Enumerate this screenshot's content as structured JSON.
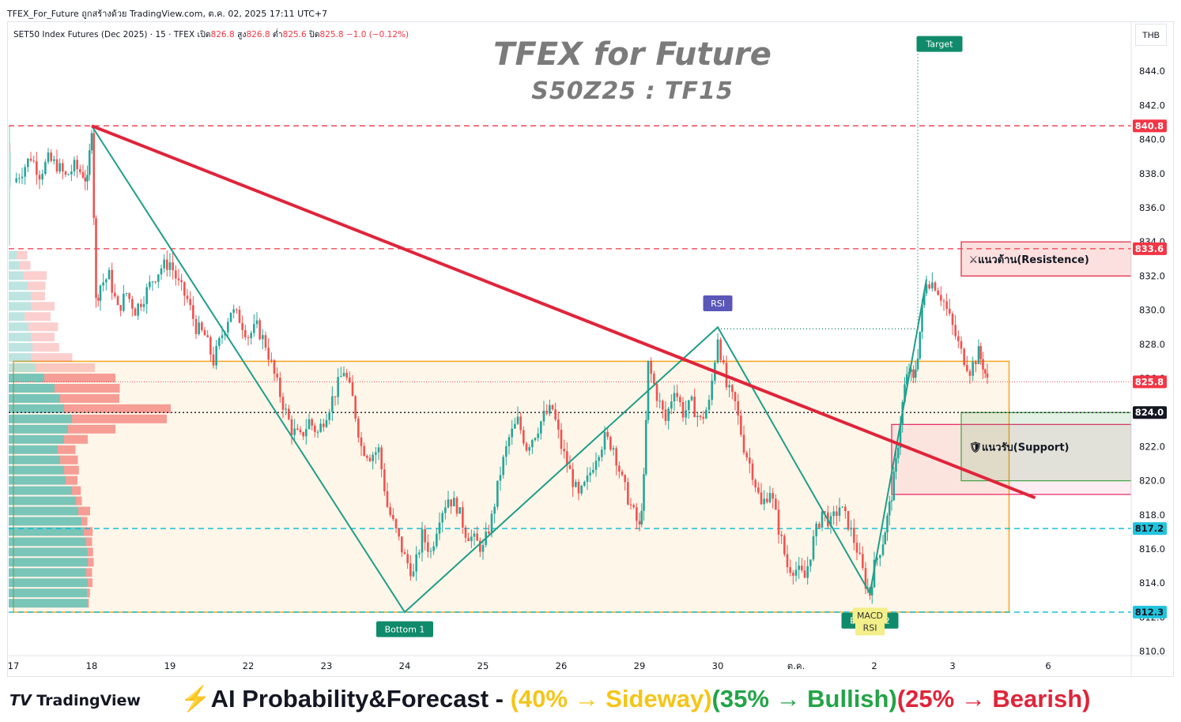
{
  "header": {
    "caption": "TFEX_For_Future ถูกสร้างด้วย TradingView.com, ต.ค. 02, 2025 17:11 UTC+7"
  },
  "legend": {
    "symbol": "SET50 Index Futures (Dec 2025) · 15 · TFEX",
    "open_label": "เปิด",
    "open": "826.8",
    "high_label": "สูง",
    "high": "826.8",
    "low_label": "ต่ำ",
    "low": "825.6",
    "close_label": "ปิด",
    "close": "825.8",
    "change": "−1.0 (−0.12%)"
  },
  "currency": "THB",
  "watermark": {
    "title": "TFEX for Future",
    "subtitle": "S50Z25 : TF15"
  },
  "footer": {
    "logo": "TradingView",
    "forecast_prefix": "⚡AI Probability&Forecast - ",
    "sideway": "(40% → Sideway)",
    "bullish": "(35% → Bullish)",
    "bearish": "(25% → Bearish)"
  },
  "colors": {
    "up": "#26a69a",
    "down": "#ef5350",
    "trend": "#e0243a",
    "zigzag": "#1f9e89",
    "range": "#f5a623",
    "support_box": "#43a047",
    "resistance_box": "#e0243a"
  },
  "chart_data": {
    "type": "candlestick",
    "y_axis": {
      "ticks": [
        "810.0",
        "812.0",
        "814.0",
        "816.0",
        "818.0",
        "820.0",
        "822.0",
        "824.0",
        "826.0",
        "828.0",
        "830.0",
        "832.0",
        "834.0",
        "836.0",
        "838.0",
        "840.0",
        "842.0",
        "844.0"
      ]
    },
    "x_axis": {
      "ticks": [
        {
          "label": "17",
          "x": 0
        },
        {
          "label": "18",
          "x": 18
        },
        {
          "label": "19",
          "x": 36
        },
        {
          "label": "22",
          "x": 54
        },
        {
          "label": "23",
          "x": 72
        },
        {
          "label": "24",
          "x": 90
        },
        {
          "label": "25",
          "x": 108
        },
        {
          "label": "26",
          "x": 126
        },
        {
          "label": "29",
          "x": 144
        },
        {
          "label": "30",
          "x": 162
        },
        {
          "label": "ต.ค.",
          "x": 180
        },
        {
          "label": "2",
          "x": 198
        },
        {
          "label": "3",
          "x": 216
        },
        {
          "label": "6",
          "x": 238
        }
      ]
    },
    "close_path": [
      [
        0,
        837.5
      ],
      [
        2,
        838.2
      ],
      [
        4,
        839.0
      ],
      [
        6,
        838.0
      ],
      [
        8,
        838.8
      ],
      [
        10,
        838.5
      ],
      [
        12,
        837.8
      ],
      [
        14,
        838.4
      ],
      [
        16,
        838.0
      ],
      [
        17,
        837.5
      ],
      [
        18,
        840.8
      ],
      [
        19,
        830.5
      ],
      [
        20,
        831.5
      ],
      [
        22,
        832.0
      ],
      [
        24,
        830.0
      ],
      [
        26,
        831.0
      ],
      [
        28,
        830.0
      ],
      [
        30,
        830.8
      ],
      [
        32,
        831.8
      ],
      [
        34,
        832.5
      ],
      [
        36,
        832.8
      ],
      [
        38,
        831.5
      ],
      [
        40,
        830.6
      ],
      [
        42,
        829.0
      ],
      [
        44,
        828.5
      ],
      [
        46,
        827.0
      ],
      [
        48,
        828.6
      ],
      [
        50,
        830.0
      ],
      [
        52,
        829.5
      ],
      [
        54,
        828.5
      ],
      [
        56,
        829.0
      ],
      [
        58,
        828.0
      ],
      [
        60,
        826.2
      ],
      [
        62,
        824.5
      ],
      [
        64,
        823.0
      ],
      [
        66,
        822.5
      ],
      [
        68,
        823.5
      ],
      [
        70,
        822.8
      ],
      [
        72,
        824.0
      ],
      [
        74,
        825.2
      ],
      [
        76,
        826.5
      ],
      [
        78,
        824.8
      ],
      [
        80,
        822.0
      ],
      [
        82,
        821.5
      ],
      [
        84,
        821.8
      ],
      [
        86,
        818.5
      ],
      [
        88,
        817.0
      ],
      [
        90,
        815.5
      ],
      [
        92,
        814.5
      ],
      [
        94,
        816.8
      ],
      [
        96,
        815.8
      ],
      [
        98,
        818.0
      ],
      [
        100,
        819.0
      ],
      [
        102,
        818.5
      ],
      [
        104,
        817.0
      ],
      [
        106,
        816.5
      ],
      [
        108,
        816.0
      ],
      [
        110,
        817.8
      ],
      [
        112,
        820.5
      ],
      [
        114,
        822.5
      ],
      [
        116,
        823.5
      ],
      [
        118,
        822.0
      ],
      [
        120,
        822.8
      ],
      [
        122,
        823.8
      ],
      [
        124,
        824.2
      ],
      [
        126,
        822.0
      ],
      [
        128,
        820.5
      ],
      [
        130,
        819.0
      ],
      [
        132,
        820.0
      ],
      [
        134,
        821.5
      ],
      [
        136,
        822.5
      ],
      [
        138,
        822.0
      ],
      [
        140,
        820.0
      ],
      [
        142,
        818.5
      ],
      [
        144,
        817.2
      ],
      [
        145,
        820.0
      ],
      [
        146,
        826.8
      ],
      [
        148,
        825.0
      ],
      [
        150,
        823.5
      ],
      [
        152,
        825.5
      ],
      [
        154,
        824.0
      ],
      [
        156,
        824.5
      ],
      [
        158,
        823.5
      ],
      [
        160,
        824.5
      ],
      [
        162,
        828.5
      ],
      [
        164,
        825.5
      ],
      [
        166,
        824.5
      ],
      [
        168,
        822.0
      ],
      [
        170,
        820.5
      ],
      [
        172,
        818.5
      ],
      [
        174,
        819.5
      ],
      [
        176,
        817.2
      ],
      [
        178,
        815.0
      ],
      [
        180,
        814.8
      ],
      [
        182,
        814.3
      ],
      [
        184,
        816.5
      ],
      [
        186,
        818.2
      ],
      [
        188,
        817.5
      ],
      [
        190,
        818.5
      ],
      [
        192,
        817.5
      ],
      [
        194,
        816.0
      ],
      [
        196,
        814.0
      ],
      [
        197,
        813.4
      ],
      [
        198,
        815.0
      ],
      [
        200,
        816.5
      ],
      [
        201,
        817.8
      ],
      [
        202,
        819.2
      ],
      [
        203,
        821.0
      ],
      [
        204,
        823.5
      ],
      [
        205,
        825.5
      ],
      [
        206,
        826.5
      ],
      [
        207,
        825.8
      ],
      [
        208,
        827.5
      ],
      [
        209,
        830.0
      ],
      [
        210,
        831.8
      ],
      [
        212,
        831.5
      ],
      [
        214,
        830.5
      ],
      [
        216,
        829.0
      ],
      [
        218,
        827.5
      ],
      [
        220,
        826.5
      ],
      [
        222,
        827.5
      ],
      [
        223,
        826.8
      ],
      [
        224,
        825.8
      ]
    ],
    "levels": [
      {
        "label": "840.8",
        "price": 840.8,
        "color": "#f23645"
      },
      {
        "label": "833.6",
        "price": 833.6,
        "color": "#f23645"
      },
      {
        "label": "825.8",
        "price": 825.8,
        "color": "#f23645"
      },
      {
        "label": "824.0",
        "price": 824.0,
        "color": "#131722"
      },
      {
        "label": "817.2",
        "price": 817.2,
        "color": "#00bcd4"
      },
      {
        "label": "812.3",
        "price": 812.3,
        "color": "#00bcd4"
      }
    ],
    "trendline": [
      [
        18,
        840.8
      ],
      [
        235,
        819.0
      ]
    ],
    "zigzag": [
      [
        18,
        840.8
      ],
      [
        90,
        812.3
      ],
      [
        162,
        829.0
      ],
      [
        197,
        813.4
      ],
      [
        210,
        831.8
      ]
    ],
    "range_box": {
      "x0": 0,
      "x1": 229,
      "top": 827.0,
      "bottom": 812.3
    },
    "support_zone": {
      "x0": 202,
      "x1": 235,
      "top": 823.3,
      "bottom": 819.2
    },
    "resistance_box": {
      "x0": 218,
      "x1": 235,
      "top": 834.0,
      "bottom": 832.0
    },
    "support_box": {
      "x0": 218,
      "x1": 235,
      "top": 824.0,
      "bottom": 820.0
    },
    "target_path": {
      "from": [
        162,
        828.9
      ],
      "corner_x": 208,
      "to": [
        218,
        845.3
      ]
    },
    "volume_profile": [
      [
        840.5,
        2,
        0
      ],
      [
        840.0,
        2,
        0
      ],
      [
        839.5,
        2,
        1
      ],
      [
        839.0,
        3,
        0
      ],
      [
        838.5,
        3,
        0
      ],
      [
        838.0,
        3,
        0
      ],
      [
        837.5,
        3,
        0
      ],
      [
        837.0,
        2,
        0
      ],
      [
        836.5,
        2,
        0
      ],
      [
        836.0,
        2,
        0
      ],
      [
        835.5,
        2,
        0
      ],
      [
        835.0,
        2,
        0
      ],
      [
        834.5,
        2,
        0
      ],
      [
        834.0,
        2,
        0
      ],
      [
        833.2,
        10,
        18
      ],
      [
        832.6,
        14,
        18
      ],
      [
        832.0,
        18,
        40
      ],
      [
        831.4,
        24,
        30
      ],
      [
        830.8,
        28,
        24
      ],
      [
        830.2,
        28,
        40
      ],
      [
        829.6,
        20,
        44
      ],
      [
        829.0,
        25,
        50
      ],
      [
        828.4,
        28,
        40
      ],
      [
        827.8,
        30,
        45
      ],
      [
        827.2,
        28,
        70
      ],
      [
        826.6,
        34,
        100
      ],
      [
        826.0,
        45,
        120
      ],
      [
        825.4,
        58,
        110
      ],
      [
        824.8,
        65,
        100
      ],
      [
        824.2,
        70,
        180
      ],
      [
        823.6,
        80,
        160
      ],
      [
        823.0,
        75,
        80
      ],
      [
        822.4,
        70,
        40
      ],
      [
        821.8,
        62,
        30
      ],
      [
        821.2,
        65,
        30
      ],
      [
        820.6,
        70,
        25
      ],
      [
        820.0,
        72,
        20
      ],
      [
        819.4,
        80,
        15
      ],
      [
        818.8,
        85,
        10
      ],
      [
        818.2,
        88,
        20
      ],
      [
        817.6,
        92,
        10
      ],
      [
        817.0,
        95,
        15
      ],
      [
        816.4,
        98,
        10
      ],
      [
        815.8,
        100,
        9
      ],
      [
        815.2,
        100,
        10
      ],
      [
        814.6,
        98,
        10
      ],
      [
        814.0,
        100,
        8
      ],
      [
        813.4,
        99,
        5
      ],
      [
        812.8,
        100,
        2
      ]
    ],
    "annotations": [
      {
        "text": "Target",
        "x": 213,
        "price": 845.6,
        "bg": "#0f8a6a",
        "fg": "#ffffff"
      },
      {
        "text": "RSI",
        "x": 162,
        "price": 830.4,
        "bg": "#5a57b8",
        "fg": "#ffffff"
      },
      {
        "text": "Bottom 1",
        "x": 90,
        "price": 811.3,
        "bg": "#0f8a6a",
        "fg": "#ffffff"
      },
      {
        "text": "Bottom 2",
        "x": 197,
        "price": 811.8,
        "bg": "#0f8a6a",
        "fg": "#ffffff"
      },
      {
        "text": "MACD",
        "x": 197,
        "price": 812.1,
        "bg": "#f3ef8a",
        "fg": "#333333"
      },
      {
        "text": "RSI",
        "x": 197,
        "price": 811.4,
        "bg": "#f3ef8a",
        "fg": "#333333"
      }
    ],
    "zone_labels": [
      {
        "text": "⚔แนวต้าน(Resistence)",
        "x": 219,
        "price": 833.0
      },
      {
        "text": "🛡แนวรับ(Support)",
        "x": 219,
        "price": 822.0
      }
    ]
  }
}
